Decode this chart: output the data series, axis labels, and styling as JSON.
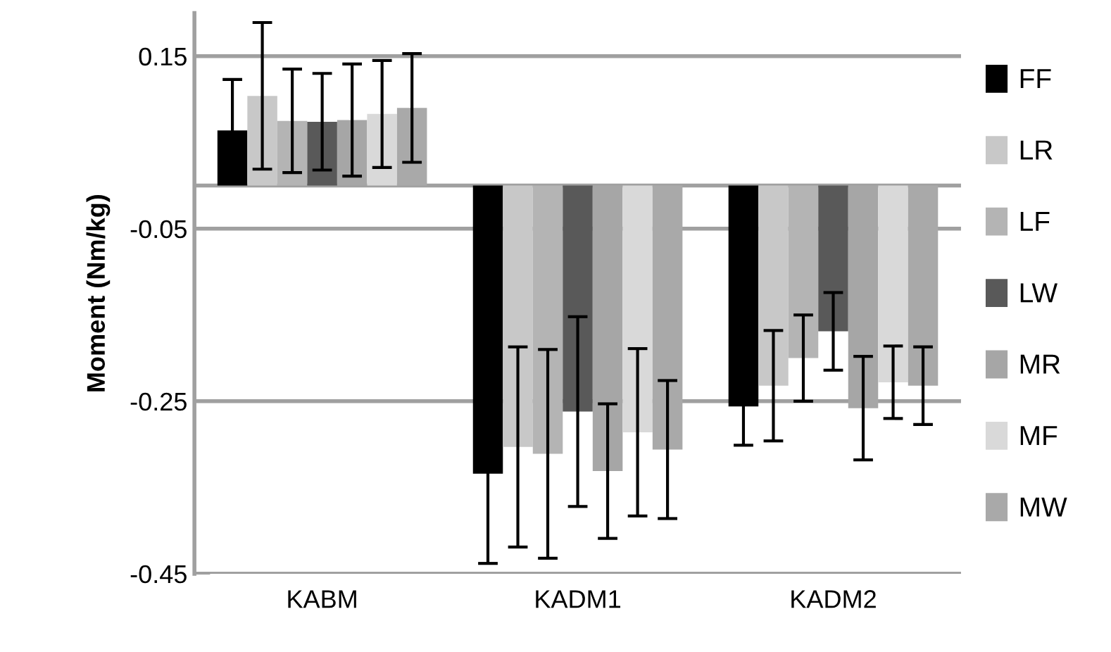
{
  "chart_data": {
    "type": "bar",
    "ylabel": "Moment (Nm/kg)",
    "categories": [
      "KABM",
      "KADM1",
      "KADM2"
    ],
    "series": [
      {
        "name": "FF",
        "color": "#000000",
        "values": [
          0.064,
          -0.334,
          -0.256
        ],
        "errors": [
          0.059,
          0.104,
          0.045
        ]
      },
      {
        "name": "LR",
        "color": "#c8c8c8",
        "values": [
          0.104,
          -0.303,
          -0.232
        ],
        "errors": [
          0.085,
          0.116,
          0.064
        ]
      },
      {
        "name": "LF",
        "color": "#b4b4b4",
        "values": [
          0.075,
          -0.311,
          -0.2
        ],
        "errors": [
          0.06,
          0.121,
          0.05
        ]
      },
      {
        "name": "LW",
        "color": "#595959",
        "values": [
          0.074,
          -0.262,
          -0.169
        ],
        "errors": [
          0.056,
          0.11,
          0.045
        ]
      },
      {
        "name": "MR",
        "color": "#a6a6a6",
        "values": [
          0.076,
          -0.331,
          -0.258
        ],
        "errors": [
          0.065,
          0.078,
          0.06
        ]
      },
      {
        "name": "MF",
        "color": "#d9d9d9",
        "values": [
          0.083,
          -0.286,
          -0.228
        ],
        "errors": [
          0.062,
          0.097,
          0.042
        ]
      },
      {
        "name": "MW",
        "color": "#a9a9a9",
        "values": [
          0.09,
          -0.306,
          -0.232
        ],
        "errors": [
          0.063,
          0.08,
          0.045
        ]
      }
    ],
    "ylim": [
      -0.45,
      0.2
    ],
    "yticks": [
      -0.45,
      -0.25,
      -0.05,
      0.15
    ],
    "grid": "y",
    "legend": "right"
  }
}
